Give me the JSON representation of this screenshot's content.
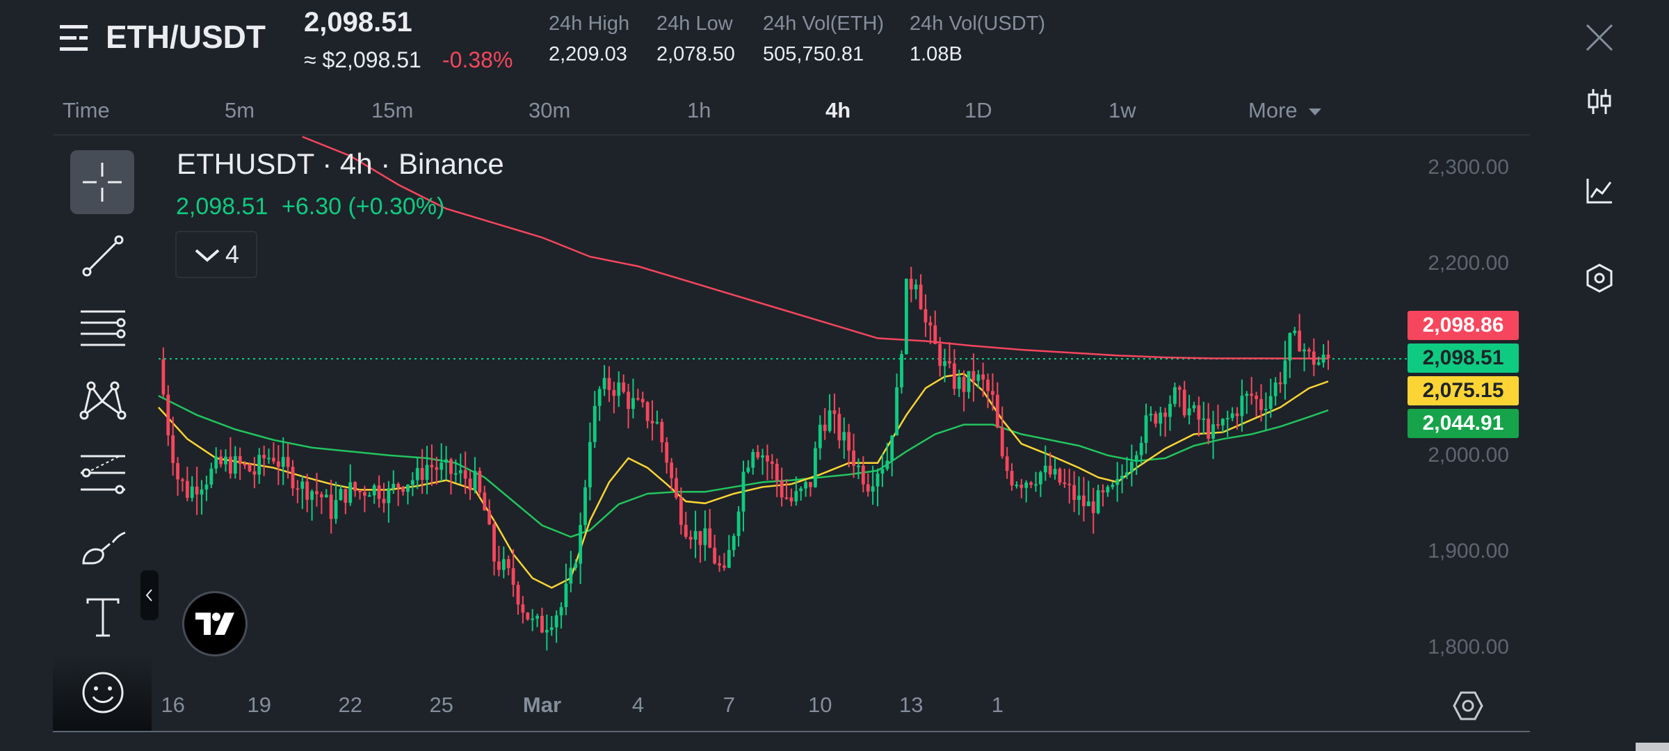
{
  "header": {
    "pair": "ETH/USDT",
    "last_price": "2,098.51",
    "usd_price": "≈ $2,098.51",
    "change_pct": "-0.38%",
    "stats": [
      {
        "label": "24h High",
        "value": "2,209.03"
      },
      {
        "label": "24h Low",
        "value": "2,078.50"
      },
      {
        "label": "24h Vol(ETH)",
        "value": "505,750.81"
      },
      {
        "label": "24h Vol(USDT)",
        "value": "1.08B"
      }
    ]
  },
  "timeframes": [
    {
      "label": "Time",
      "active": false
    },
    {
      "label": "5m",
      "active": false
    },
    {
      "label": "15m",
      "active": false
    },
    {
      "label": "30m",
      "active": false
    },
    {
      "label": "1h",
      "active": false
    },
    {
      "label": "4h",
      "active": true
    },
    {
      "label": "1D",
      "active": false
    },
    {
      "label": "1w",
      "active": false
    },
    {
      "label": "More",
      "active": false
    }
  ],
  "chart_header": {
    "title": "ETHUSDT · 4h · Binance",
    "price": "2,098.51",
    "change": "+6.30 (+0.30%)",
    "indicator_count": "4"
  },
  "price_tags": [
    {
      "value": "2,098.86",
      "bg": "#f6465d",
      "fg": "#ffffff"
    },
    {
      "value": "2,098.51",
      "bg": "#0ecb81",
      "fg": "#1e2329"
    },
    {
      "value": "2,075.15",
      "bg": "#fcd535",
      "fg": "#1e2329"
    },
    {
      "value": "2,044.91",
      "bg": "#16a34a",
      "fg": "#ffffff"
    }
  ],
  "colors": {
    "up": "#0ecb81",
    "down": "#f6465d",
    "ma_fast": "#fcd535",
    "ma_mid": "#22c55e",
    "ma_slow": "#f6465d",
    "background": "#1e2329"
  },
  "icons": {
    "left_toolbar": [
      "crosshair-icon",
      "trend-line-icon",
      "horizontal-lines-icon",
      "pattern-icon",
      "forecast-icon",
      "brush-icon",
      "text-icon",
      "emoji-icon"
    ],
    "right_toolbar": [
      "close-icon",
      "candlestick-icon",
      "indicator-chart-icon",
      "settings-hexagon-icon"
    ]
  },
  "chart_data": {
    "type": "candlestick",
    "ylim": [
      1760,
      2330
    ],
    "yticks": [
      "2,300.00",
      "2,200.00",
      "2,000.00",
      "1,900.00",
      "1,800.00"
    ],
    "ytick_values": [
      2300,
      2200,
      2000,
      1900,
      1800
    ],
    "xticks": [
      "16",
      "19",
      "22",
      "25",
      "Mar",
      "4",
      "7",
      "10",
      "13",
      "1"
    ],
    "last_price_line": 2098.51,
    "close_path": [
      [
        0,
        2098
      ],
      [
        2,
        2025
      ],
      [
        4,
        1975
      ],
      [
        6,
        1960
      ],
      [
        8,
        1968
      ],
      [
        10,
        1975
      ],
      [
        12,
        1985
      ],
      [
        14,
        1990
      ],
      [
        16,
        1988
      ],
      [
        18,
        1985
      ],
      [
        20,
        1980
      ],
      [
        22,
        1995
      ],
      [
        24,
        1998
      ],
      [
        26,
        1985
      ],
      [
        28,
        1975
      ],
      [
        30,
        1965
      ],
      [
        32,
        1962
      ],
      [
        34,
        1955
      ],
      [
        36,
        1940
      ],
      [
        38,
        1955
      ],
      [
        40,
        1962
      ],
      [
        42,
        1960
      ],
      [
        44,
        1965
      ],
      [
        46,
        1962
      ],
      [
        48,
        1958
      ],
      [
        50,
        1968
      ],
      [
        52,
        1972
      ],
      [
        54,
        1975
      ],
      [
        56,
        1988
      ],
      [
        58,
        1985
      ],
      [
        60,
        1982
      ],
      [
        62,
        1978
      ],
      [
        64,
        1975
      ],
      [
        66,
        1970
      ],
      [
        68,
        1940
      ],
      [
        70,
        1890
      ],
      [
        72,
        1880
      ],
      [
        74,
        1865
      ],
      [
        76,
        1840
      ],
      [
        78,
        1822
      ],
      [
        80,
        1820
      ],
      [
        82,
        1830
      ],
      [
        84,
        1840
      ],
      [
        86,
        1870
      ],
      [
        88,
        1920
      ],
      [
        90,
        2020
      ],
      [
        92,
        2065
      ],
      [
        94,
        2070
      ],
      [
        96,
        2068
      ],
      [
        98,
        2055
      ],
      [
        100,
        2048
      ],
      [
        102,
        2040
      ],
      [
        104,
        2030
      ],
      [
        106,
        1995
      ],
      [
        108,
        1950
      ],
      [
        110,
        1925
      ],
      [
        112,
        1915
      ],
      [
        114,
        1910
      ],
      [
        116,
        1890
      ],
      [
        118,
        1870
      ],
      [
        120,
        1920
      ],
      [
        122,
        1980
      ],
      [
        124,
        2010
      ],
      [
        126,
        2000
      ],
      [
        128,
        1985
      ],
      [
        130,
        1960
      ],
      [
        132,
        1950
      ],
      [
        134,
        1958
      ],
      [
        136,
        1970
      ],
      [
        138,
        2030
      ],
      [
        140,
        2040
      ],
      [
        142,
        2020
      ],
      [
        144,
        2005
      ],
      [
        146,
        1985
      ],
      [
        148,
        1970
      ],
      [
        150,
        1985
      ],
      [
        152,
        1995
      ],
      [
        154,
        2060
      ],
      [
        156,
        2170
      ],
      [
        158,
        2185
      ],
      [
        160,
        2135
      ],
      [
        162,
        2110
      ],
      [
        164,
        2090
      ],
      [
        166,
        2075
      ],
      [
        168,
        2070
      ],
      [
        170,
        2080
      ],
      [
        172,
        2072
      ],
      [
        174,
        2055
      ],
      [
        176,
        1990
      ],
      [
        178,
        1975
      ],
      [
        180,
        1972
      ],
      [
        182,
        1975
      ],
      [
        184,
        1980
      ],
      [
        186,
        1978
      ],
      [
        188,
        1970
      ],
      [
        190,
        1960
      ],
      [
        192,
        1950
      ],
      [
        194,
        1945
      ],
      [
        196,
        1950
      ],
      [
        198,
        1955
      ],
      [
        200,
        1965
      ],
      [
        202,
        1990
      ],
      [
        204,
        2010
      ],
      [
        206,
        2030
      ],
      [
        208,
        2040
      ],
      [
        210,
        2050
      ],
      [
        212,
        2060
      ],
      [
        214,
        2050
      ],
      [
        216,
        2040
      ],
      [
        218,
        2030
      ],
      [
        220,
        2020
      ],
      [
        222,
        2030
      ],
      [
        224,
        2040
      ],
      [
        226,
        2055
      ],
      [
        228,
        2060
      ],
      [
        230,
        2050
      ],
      [
        232,
        2062
      ],
      [
        234,
        2080
      ],
      [
        236,
        2115
      ],
      [
        238,
        2118
      ],
      [
        240,
        2100
      ],
      [
        242,
        2095
      ],
      [
        244,
        2098
      ]
    ],
    "ma_fast_path": [
      [
        0,
        2048
      ],
      [
        6,
        2015
      ],
      [
        12,
        1995
      ],
      [
        18,
        1990
      ],
      [
        24,
        1985
      ],
      [
        30,
        1976
      ],
      [
        36,
        1968
      ],
      [
        42,
        1962
      ],
      [
        48,
        1962
      ],
      [
        54,
        1966
      ],
      [
        60,
        1972
      ],
      [
        66,
        1962
      ],
      [
        70,
        1930
      ],
      [
        74,
        1895
      ],
      [
        78,
        1870
      ],
      [
        82,
        1860
      ],
      [
        86,
        1870
      ],
      [
        90,
        1930
      ],
      [
        94,
        1970
      ],
      [
        98,
        1995
      ],
      [
        102,
        1985
      ],
      [
        106,
        1968
      ],
      [
        110,
        1950
      ],
      [
        114,
        1948
      ],
      [
        120,
        1958
      ],
      [
        126,
        1965
      ],
      [
        132,
        1968
      ],
      [
        138,
        1978
      ],
      [
        144,
        1990
      ],
      [
        150,
        1990
      ],
      [
        156,
        2040
      ],
      [
        160,
        2068
      ],
      [
        164,
        2080
      ],
      [
        168,
        2083
      ],
      [
        172,
        2065
      ],
      [
        176,
        2035
      ],
      [
        180,
        2010
      ],
      [
        186,
        1998
      ],
      [
        192,
        1985
      ],
      [
        196,
        1975
      ],
      [
        200,
        1970
      ],
      [
        204,
        1985
      ],
      [
        210,
        2005
      ],
      [
        216,
        2020
      ],
      [
        222,
        2022
      ],
      [
        228,
        2035
      ],
      [
        234,
        2048
      ],
      [
        240,
        2068
      ],
      [
        244,
        2075
      ]
    ],
    "ma_mid_path": [
      [
        0,
        2060
      ],
      [
        8,
        2040
      ],
      [
        16,
        2025
      ],
      [
        24,
        2014
      ],
      [
        32,
        2006
      ],
      [
        40,
        2002
      ],
      [
        48,
        1998
      ],
      [
        56,
        1995
      ],
      [
        62,
        1990
      ],
      [
        68,
        1975
      ],
      [
        74,
        1950
      ],
      [
        80,
        1925
      ],
      [
        86,
        1913
      ],
      [
        90,
        1920
      ],
      [
        96,
        1947
      ],
      [
        102,
        1958
      ],
      [
        108,
        1960
      ],
      [
        114,
        1960
      ],
      [
        120,
        1965
      ],
      [
        126,
        1970
      ],
      [
        132,
        1972
      ],
      [
        138,
        1975
      ],
      [
        144,
        1978
      ],
      [
        150,
        1982
      ],
      [
        156,
        2002
      ],
      [
        162,
        2020
      ],
      [
        168,
        2030
      ],
      [
        174,
        2030
      ],
      [
        180,
        2020
      ],
      [
        186,
        2014
      ],
      [
        192,
        2008
      ],
      [
        198,
        1998
      ],
      [
        204,
        1992
      ],
      [
        210,
        1995
      ],
      [
        216,
        2008
      ],
      [
        222,
        2015
      ],
      [
        228,
        2020
      ],
      [
        234,
        2028
      ],
      [
        240,
        2038
      ],
      [
        244,
        2045
      ]
    ],
    "ma_slow_path": [
      [
        30,
        2330
      ],
      [
        40,
        2310
      ],
      [
        50,
        2280
      ],
      [
        60,
        2255
      ],
      [
        70,
        2240
      ],
      [
        80,
        2225
      ],
      [
        90,
        2205
      ],
      [
        100,
        2195
      ],
      [
        110,
        2180
      ],
      [
        120,
        2165
      ],
      [
        130,
        2150
      ],
      [
        140,
        2135
      ],
      [
        150,
        2120
      ],
      [
        160,
        2117
      ],
      [
        170,
        2112
      ],
      [
        180,
        2108
      ],
      [
        190,
        2105
      ],
      [
        200,
        2102
      ],
      [
        210,
        2100
      ],
      [
        220,
        2099
      ],
      [
        230,
        2099
      ],
      [
        244,
        2098.86
      ]
    ]
  }
}
